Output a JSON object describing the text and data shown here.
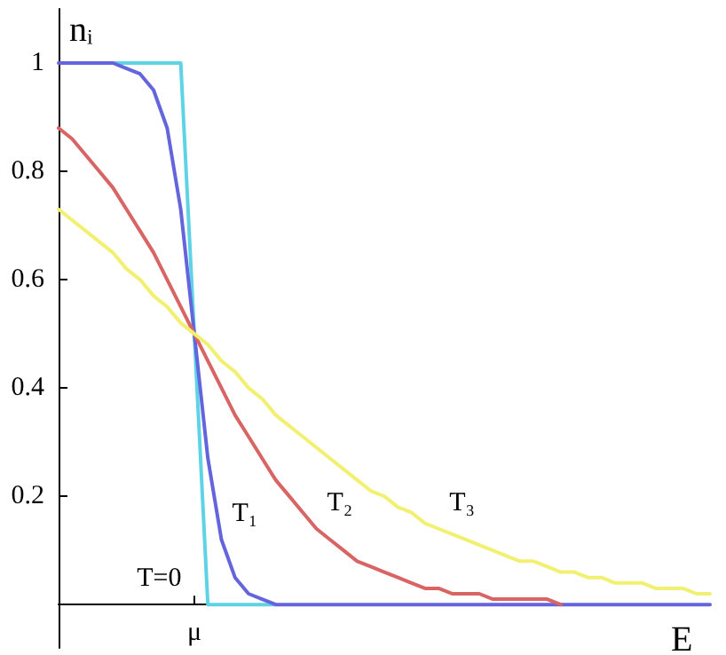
{
  "chart_data": {
    "type": "line",
    "xlabel": "E",
    "ylabel": "nᵢ",
    "categories": [
      null,
      null,
      null,
      null,
      null,
      null,
      null,
      null,
      null,
      null,
      "μ",
      null,
      null,
      null,
      null,
      null,
      null,
      null,
      null,
      null,
      null,
      null,
      null,
      null,
      null,
      null,
      null,
      null,
      null,
      null,
      null,
      null,
      null,
      null,
      null,
      null,
      null,
      null,
      null,
      null,
      null,
      null,
      null,
      null,
      null,
      null,
      null,
      null,
      null
    ],
    "ylim": [
      -0.08,
      1.1
    ],
    "yticks": [
      0.2,
      0.4,
      0.6,
      0.8,
      1
    ],
    "line_style": "solid",
    "series": [
      {
        "name": "T=0",
        "color": "#5fd3e6",
        "values": [
          null,
          null,
          null,
          null,
          1,
          1,
          1,
          1,
          1,
          1,
          0.5,
          0,
          0,
          0,
          0,
          0,
          0,
          null,
          null,
          null,
          null,
          null,
          null,
          null,
          null,
          null,
          null,
          null,
          null,
          null,
          null,
          null,
          null,
          null,
          null,
          null,
          null,
          null,
          null,
          null,
          null,
          null,
          null,
          null,
          null,
          null,
          null,
          null,
          null
        ]
      },
      {
        "name": "T₁",
        "color": "#6464dc",
        "values": [
          1,
          1,
          1,
          1,
          1,
          0.99,
          0.98,
          0.95,
          0.88,
          0.73,
          0.5,
          0.27,
          0.12,
          0.05,
          0.02,
          0.01,
          0,
          0,
          0,
          0,
          0,
          0,
          0,
          0,
          0,
          0,
          0,
          0,
          0,
          0,
          0,
          0,
          0,
          0,
          0,
          0,
          0,
          0,
          0,
          0,
          0,
          0,
          0,
          0,
          0,
          0,
          0,
          0,
          0
        ]
      },
      {
        "name": "T₂",
        "color": "#d96464",
        "values": [
          0.88,
          0.86,
          0.83,
          0.8,
          0.77,
          0.73,
          0.69,
          0.65,
          0.6,
          0.55,
          0.5,
          0.45,
          0.4,
          0.35,
          0.31,
          0.27,
          0.23,
          0.2,
          0.17,
          0.14,
          0.12,
          0.1,
          0.08,
          0.07,
          0.06,
          0.05,
          0.04,
          0.03,
          0.03,
          0.02,
          0.02,
          0.02,
          0.01,
          0.01,
          0.01,
          0.01,
          0.01,
          0,
          null,
          null,
          null,
          null,
          null,
          null,
          null,
          null,
          null,
          null,
          null
        ]
      },
      {
        "name": "T₃",
        "color": "#f2f070",
        "values": [
          0.73,
          0.71,
          0.69,
          0.67,
          0.65,
          0.62,
          0.6,
          0.57,
          0.55,
          0.52,
          0.5,
          0.48,
          0.45,
          0.43,
          0.4,
          0.38,
          0.35,
          0.33,
          0.31,
          0.29,
          0.27,
          0.25,
          0.23,
          0.21,
          0.2,
          0.18,
          0.17,
          0.15,
          0.14,
          0.13,
          0.12,
          0.11,
          0.1,
          0.09,
          0.08,
          0.08,
          0.07,
          0.06,
          0.06,
          0.05,
          0.05,
          0.04,
          0.04,
          0.04,
          0.03,
          0.03,
          0.03,
          0.02,
          0.02
        ]
      }
    ]
  }
}
